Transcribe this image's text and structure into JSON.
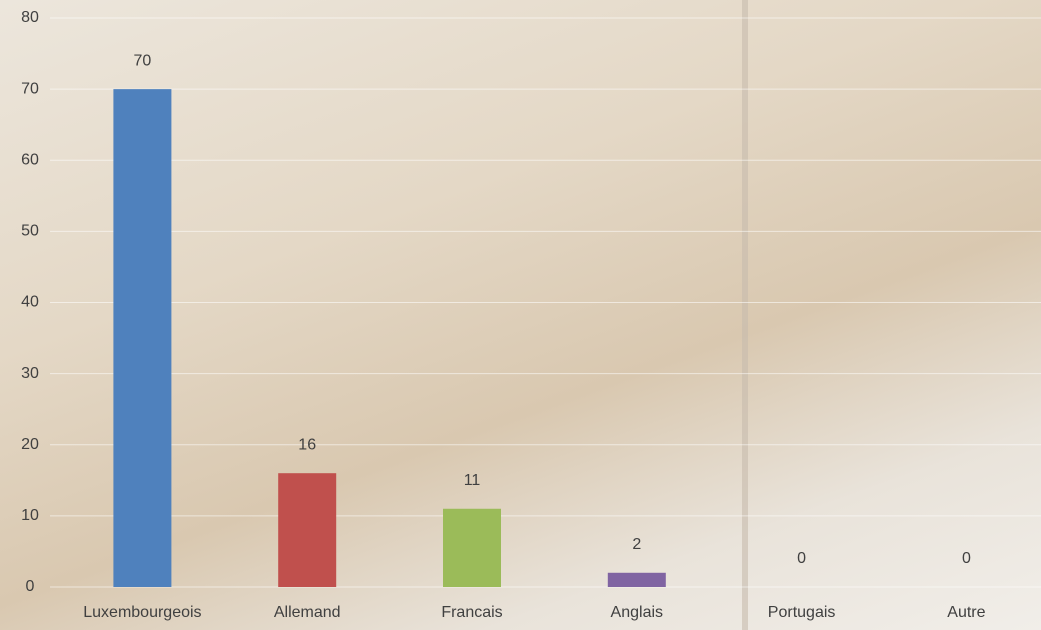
{
  "chart_data": {
    "type": "bar",
    "categories": [
      "Luxembourgeois",
      "Allemand",
      "Francais",
      "Anglais",
      "Portugais",
      "Autre"
    ],
    "values": [
      70,
      16,
      11,
      2,
      0,
      0
    ],
    "colors": [
      "#4f81bd",
      "#c0504d",
      "#9bbb59",
      "#8064a2",
      "#4bacc6",
      "#f79646"
    ],
    "ylim": [
      0,
      80
    ],
    "yticks": [
      0,
      10,
      20,
      30,
      40,
      50,
      60,
      70,
      80
    ],
    "grid": true
  }
}
